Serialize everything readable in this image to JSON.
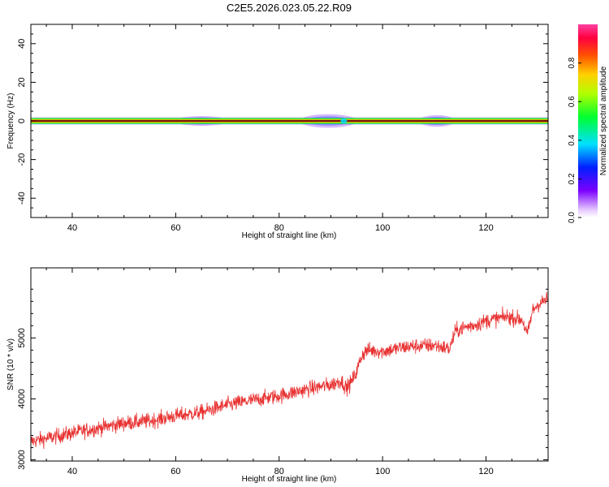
{
  "title": "C2E5.2026.023.05.22.R09",
  "chart_data": [
    {
      "type": "heatmap",
      "xlabel": "Height of straight line (km)",
      "ylabel": "Frequency (Hz)",
      "xlim": [
        32,
        132
      ],
      "ylim": [
        -50,
        50
      ],
      "x_ticks": [
        40,
        60,
        80,
        100,
        120
      ],
      "y_ticks": [
        -40,
        -20,
        0,
        20,
        40
      ],
      "band_center_hz": 0,
      "band_halfwidth_hz": 1.5,
      "bursts": [
        {
          "x_from": 60,
          "x_to": 70,
          "halfwidth_hz": 2.5
        },
        {
          "x_from": 84,
          "x_to": 95,
          "halfwidth_hz": 3.5
        },
        {
          "x_from": 107,
          "x_to": 114,
          "halfwidth_hz": 3.0
        }
      ],
      "colorbar": {
        "label": "Normalized spectral amplitude",
        "range": [
          0,
          1
        ],
        "ticks": [
          0.0,
          0.2,
          0.4,
          0.6,
          0.8
        ]
      }
    },
    {
      "type": "line",
      "xlabel": "Height of straight line (km)",
      "ylabel": "SNR (10 * v/v)",
      "xlim": [
        32,
        132
      ],
      "ylim": [
        2980,
        6150
      ],
      "x_ticks": [
        40,
        60,
        80,
        100,
        120
      ],
      "y_ticks": [
        3000,
        4000,
        5000
      ],
      "color": "#e83030",
      "series": [
        {
          "x": [
            32,
            35,
            40,
            45,
            50,
            55,
            60,
            65,
            70,
            75,
            80,
            85,
            88,
            90,
            92,
            93,
            94,
            95,
            96,
            97,
            100,
            105,
            110,
            113,
            114,
            115,
            118,
            120,
            124,
            127,
            128,
            129,
            130,
            132
          ],
          "values": [
            3300,
            3350,
            3440,
            3520,
            3600,
            3640,
            3720,
            3780,
            3900,
            3980,
            4050,
            4150,
            4200,
            4230,
            4300,
            4180,
            4280,
            4450,
            4720,
            4800,
            4780,
            4860,
            4880,
            4820,
            5100,
            5150,
            5220,
            5280,
            5350,
            5300,
            5050,
            5450,
            5550,
            5640
          ]
        }
      ]
    }
  ]
}
